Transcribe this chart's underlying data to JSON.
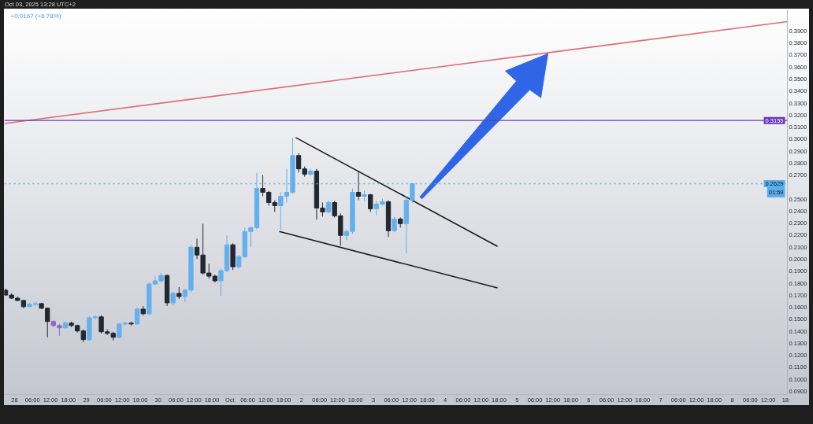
{
  "chart_data": {
    "type": "candlestick",
    "subtitle": "+0.0167 (+6.78%)",
    "annotations": [
      "Oct 03, 2025 13:28 UTC+2",
      "01:59"
    ],
    "x": [
      "2025-09-27T21:00",
      "2025-09-27T23:00",
      "2025-09-28T01:00",
      "2025-09-28T03:00",
      "2025-09-28T05:00",
      "2025-09-28T07:00",
      "2025-09-28T09:00",
      "2025-09-28T11:00",
      "2025-09-28T13:00",
      "2025-09-28T15:00",
      "2025-09-28T17:00",
      "2025-09-28T19:00",
      "2025-09-28T21:00",
      "2025-09-28T23:00",
      "2025-09-29T01:00",
      "2025-09-29T03:00",
      "2025-09-29T05:00",
      "2025-09-29T07:00",
      "2025-09-29T09:00",
      "2025-09-29T11:00",
      "2025-09-29T13:00",
      "2025-09-29T15:00",
      "2025-09-29T17:00",
      "2025-09-29T19:00",
      "2025-09-29T21:00",
      "2025-09-29T23:00",
      "2025-09-30T01:00",
      "2025-09-30T03:00",
      "2025-09-30T05:00",
      "2025-09-30T07:00",
      "2025-09-30T09:00",
      "2025-09-30T11:00",
      "2025-09-30T13:00",
      "2025-09-30T15:00",
      "2025-09-30T17:00",
      "2025-09-30T19:00",
      "2025-09-30T21:00",
      "2025-09-30T23:00",
      "2025-10-01T01:00",
      "2025-10-01T03:00",
      "2025-10-01T05:00",
      "2025-10-01T07:00",
      "2025-10-01T09:00",
      "2025-10-01T11:00",
      "2025-10-01T13:00",
      "2025-10-01T15:00",
      "2025-10-01T17:00",
      "2025-10-01T19:00",
      "2025-10-01T21:00",
      "2025-10-01T23:00",
      "2025-10-02T01:00",
      "2025-10-02T03:00",
      "2025-10-02T05:00",
      "2025-10-02T07:00",
      "2025-10-02T09:00",
      "2025-10-02T11:00",
      "2025-10-02T13:00",
      "2025-10-02T15:00",
      "2025-10-02T17:00",
      "2025-10-02T19:00",
      "2025-10-02T21:00",
      "2025-10-02T23:00",
      "2025-10-03T01:00",
      "2025-10-03T03:00",
      "2025-10-03T05:00",
      "2025-10-03T07:00",
      "2025-10-03T09:00",
      "2025-10-03T11:00",
      "2025-10-03T13:00"
    ],
    "ohlc": [
      [
        0.1742,
        0.1755,
        0.1696,
        0.1702
      ],
      [
        0.1702,
        0.1716,
        0.167,
        0.1676
      ],
      [
        0.1676,
        0.1689,
        0.165,
        0.1657
      ],
      [
        0.1657,
        0.1663,
        0.1592,
        0.1605
      ],
      [
        0.1605,
        0.1637,
        0.1598,
        0.1624
      ],
      [
        0.1624,
        0.1644,
        0.1611,
        0.1631
      ],
      [
        0.1631,
        0.1637,
        0.1585,
        0.1592
      ],
      [
        0.1592,
        0.1598,
        0.135,
        0.1481
      ],
      [
        0.1481,
        0.1494,
        0.1435,
        0.1448
      ],
      [
        0.1448,
        0.1461,
        0.1363,
        0.1429
      ],
      [
        0.1429,
        0.1481,
        0.1422,
        0.1468
      ],
      [
        0.1468,
        0.1481,
        0.1435,
        0.1448
      ],
      [
        0.1448,
        0.1455,
        0.139,
        0.1403
      ],
      [
        0.1403,
        0.1416,
        0.1311,
        0.1331
      ],
      [
        0.1331,
        0.1526,
        0.1318,
        0.1513
      ],
      [
        0.1513,
        0.1533,
        0.15,
        0.152
      ],
      [
        0.152,
        0.1533,
        0.1383,
        0.1396
      ],
      [
        0.1396,
        0.1416,
        0.137,
        0.1383
      ],
      [
        0.1383,
        0.1396,
        0.1324,
        0.135
      ],
      [
        0.135,
        0.1468,
        0.1344,
        0.1461
      ],
      [
        0.1461,
        0.1481,
        0.1448,
        0.1468
      ],
      [
        0.1468,
        0.1481,
        0.1448,
        0.1461
      ],
      [
        0.1461,
        0.1598,
        0.1455,
        0.1585
      ],
      [
        0.1585,
        0.1611,
        0.1533,
        0.1546
      ],
      [
        0.1546,
        0.1807,
        0.1533,
        0.1794
      ],
      [
        0.1794,
        0.1859,
        0.1781,
        0.182
      ],
      [
        0.182,
        0.1885,
        0.1807,
        0.1865
      ],
      [
        0.1865,
        0.1872,
        0.1611,
        0.1637
      ],
      [
        0.1637,
        0.1729,
        0.1618,
        0.1716
      ],
      [
        0.1716,
        0.1768,
        0.167,
        0.1689
      ],
      [
        0.1689,
        0.1755,
        0.1644,
        0.1742
      ],
      [
        0.1742,
        0.212,
        0.1729,
        0.21
      ],
      [
        0.21,
        0.2172,
        0.2002,
        0.2035
      ],
      [
        0.2035,
        0.2296,
        0.1872,
        0.1885
      ],
      [
        0.1885,
        0.1963,
        0.1839,
        0.1859
      ],
      [
        0.1859,
        0.1872,
        0.1807,
        0.182
      ],
      [
        0.182,
        0.1918,
        0.1696,
        0.1905
      ],
      [
        0.1905,
        0.2198,
        0.1892,
        0.212
      ],
      [
        0.212,
        0.2133,
        0.1911,
        0.1937
      ],
      [
        0.1937,
        0.2035,
        0.1924,
        0.2022
      ],
      [
        0.2022,
        0.2263,
        0.2009,
        0.2231
      ],
      [
        0.2231,
        0.2276,
        0.21,
        0.2263
      ],
      [
        0.2263,
        0.272,
        0.225,
        0.2589
      ],
      [
        0.2589,
        0.27,
        0.2524,
        0.2557
      ],
      [
        0.2557,
        0.257,
        0.2446,
        0.2472
      ],
      [
        0.2472,
        0.2491,
        0.2394,
        0.2446
      ],
      [
        0.2446,
        0.2557,
        0.2244,
        0.2524
      ],
      [
        0.2524,
        0.2752,
        0.2472,
        0.2557
      ],
      [
        0.2557,
        0.3013,
        0.2544,
        0.2863
      ],
      [
        0.2863,
        0.2883,
        0.272,
        0.2752
      ],
      [
        0.2752,
        0.2772,
        0.2687,
        0.2707
      ],
      [
        0.2707,
        0.2752,
        0.2694,
        0.2733
      ],
      [
        0.2733,
        0.2752,
        0.2329,
        0.2426
      ],
      [
        0.2426,
        0.2472,
        0.2355,
        0.2394
      ],
      [
        0.2394,
        0.2485,
        0.2381,
        0.2472
      ],
      [
        0.2472,
        0.2485,
        0.2348,
        0.2361
      ],
      [
        0.2361,
        0.2381,
        0.2113,
        0.2198
      ],
      [
        0.2198,
        0.225,
        0.2159,
        0.2231
      ],
      [
        0.2231,
        0.2589,
        0.2211,
        0.2557
      ],
      [
        0.2557,
        0.2733,
        0.2491,
        0.2524
      ],
      [
        0.2524,
        0.257,
        0.2485,
        0.2537
      ],
      [
        0.2537,
        0.2544,
        0.2394,
        0.242
      ],
      [
        0.242,
        0.2485,
        0.2368,
        0.2459
      ],
      [
        0.2459,
        0.2505,
        0.2446,
        0.2478
      ],
      [
        0.2478,
        0.2491,
        0.2185,
        0.2237
      ],
      [
        0.2237,
        0.2355,
        0.2224,
        0.2335
      ],
      [
        0.2335,
        0.2348,
        0.2263,
        0.2296
      ],
      [
        0.2296,
        0.2524,
        0.2048,
        0.2491
      ],
      [
        0.2491,
        0.2635,
        0.2472,
        0.2629
      ]
    ],
    "colors": [
      "#23272f",
      "#23272f",
      "#23272f",
      "#23272f",
      "#64b0ec",
      "#64b0ec",
      "#23272f",
      "#23272f",
      "#8a6cc8",
      "#8a6cc8",
      "#64b0ec",
      "#23272f",
      "#23272f",
      "#23272f",
      "#64b0ec",
      "#64b0ec",
      "#23272f",
      "#23272f",
      "#23272f",
      "#64b0ec",
      "#64b0ec",
      "#23272f",
      "#64b0ec",
      "#23272f",
      "#64b0ec",
      "#64b0ec",
      "#64b0ec",
      "#23272f",
      "#64b0ec",
      "#23272f",
      "#64b0ec",
      "#64b0ec",
      "#23272f",
      "#23272f",
      "#23272f",
      "#23272f",
      "#64b0ec",
      "#64b0ec",
      "#23272f",
      "#64b0ec",
      "#64b0ec",
      "#64b0ec",
      "#64b0ec",
      "#23272f",
      "#23272f",
      "#23272f",
      "#64b0ec",
      "#64b0ec",
      "#64b0ec",
      "#23272f",
      "#23272f",
      "#64b0ec",
      "#23272f",
      "#23272f",
      "#64b0ec",
      "#23272f",
      "#23272f",
      "#64b0ec",
      "#64b0ec",
      "#23272f",
      "#64b0ec",
      "#23272f",
      "#64b0ec",
      "#64b0ec",
      "#23272f",
      "#64b0ec",
      "#23272f",
      "#64b0ec",
      "#64b0ec"
    ],
    "series": [
      {
        "type": "line",
        "color": "#e06c75",
        "x": [
          "2025-09-27T20:35",
          "2025-10-08T18:25"
        ],
        "values": [
          0.313,
          0.3978
        ]
      },
      {
        "type": "line",
        "color": "#1c1c1c",
        "x": [
          "2025-10-01T22:00",
          "2025-10-04T17:30"
        ],
        "values": [
          0.3013,
          0.2107
        ]
      },
      {
        "type": "line",
        "color": "#1c1c1c",
        "x": [
          "2025-10-01T16:30",
          "2025-10-04T17:30"
        ],
        "values": [
          0.2231,
          0.1761
        ]
      }
    ],
    "ref_lines": [
      {
        "axis": "y",
        "value": 0.3155,
        "label": "0.3155",
        "color": "#673ab7"
      },
      {
        "axis": "y",
        "value": 0.2629,
        "label": "0.2629",
        "color": "#5aaeea",
        "line_style": "dotted"
      }
    ],
    "xlim": [
      "2025-09-27T20:35",
      "2025-10-08T18:25"
    ],
    "ylim": [
      0.0874,
      0.4076
    ],
    "xticks": [
      {
        "value": "2025-09-28T00:00",
        "label": "28"
      },
      {
        "value": "2025-09-28T06:00",
        "label": "06:00"
      },
      {
        "value": "2025-09-28T12:00",
        "label": "12:00"
      },
      {
        "value": "2025-09-28T18:00",
        "label": "18:00"
      },
      {
        "value": "2025-09-29T00:00",
        "label": "29"
      },
      {
        "value": "2025-09-29T06:00",
        "label": "06:00"
      },
      {
        "value": "2025-09-29T12:00",
        "label": "12:00"
      },
      {
        "value": "2025-09-29T18:00",
        "label": "18:00"
      },
      {
        "value": "2025-09-30T00:00",
        "label": "30"
      },
      {
        "value": "2025-09-30T06:00",
        "label": "06:00"
      },
      {
        "value": "2025-09-30T12:00",
        "label": "12:00"
      },
      {
        "value": "2025-09-30T18:00",
        "label": "18:00"
      },
      {
        "value": "2025-10-01T00:00",
        "label": "Oct"
      },
      {
        "value": "2025-10-01T06:00",
        "label": "06:00"
      },
      {
        "value": "2025-10-01T12:00",
        "label": "12:00"
      },
      {
        "value": "2025-10-01T18:00",
        "label": "18:00"
      },
      {
        "value": "2025-10-02T00:00",
        "label": "2"
      },
      {
        "value": "2025-10-02T06:00",
        "label": "06:00"
      },
      {
        "value": "2025-10-02T12:00",
        "label": "12:00"
      },
      {
        "value": "2025-10-02T18:00",
        "label": "18:00"
      },
      {
        "value": "2025-10-03T00:00",
        "label": "3"
      },
      {
        "value": "2025-10-03T06:00",
        "label": "06:00"
      },
      {
        "value": "2025-10-03T12:00",
        "label": "12:00"
      },
      {
        "value": "2025-10-03T18:00",
        "label": "18:00"
      },
      {
        "value": "2025-10-04T00:00",
        "label": "4"
      },
      {
        "value": "2025-10-04T06:00",
        "label": "06:00"
      },
      {
        "value": "2025-10-04T12:00",
        "label": "12:00"
      },
      {
        "value": "2025-10-04T18:00",
        "label": "18:00"
      },
      {
        "value": "2025-10-05T00:00",
        "label": "5"
      },
      {
        "value": "2025-10-05T06:00",
        "label": "06:00"
      },
      {
        "value": "2025-10-05T12:00",
        "label": "12:00"
      },
      {
        "value": "2025-10-05T18:00",
        "label": "18:00"
      },
      {
        "value": "2025-10-06T00:00",
        "label": "6"
      },
      {
        "value": "2025-10-06T06:00",
        "label": "06:00"
      },
      {
        "value": "2025-10-06T12:00",
        "label": "12:00"
      },
      {
        "value": "2025-10-06T18:00",
        "label": "18:00"
      },
      {
        "value": "2025-10-07T00:00",
        "label": "7"
      },
      {
        "value": "2025-10-07T06:00",
        "label": "06:00"
      },
      {
        "value": "2025-10-07T12:00",
        "label": "12:00"
      },
      {
        "value": "2025-10-07T18:00",
        "label": "18:00"
      },
      {
        "value": "2025-10-08T00:00",
        "label": "8"
      },
      {
        "value": "2025-10-08T06:00",
        "label": "06:00"
      },
      {
        "value": "2025-10-08T12:00",
        "label": "12:00"
      },
      {
        "value": "2025-10-08T18:00",
        "label": "18:"
      }
    ],
    "yticks": [
      {
        "value": 0.09,
        "label": "0.0900"
      },
      {
        "value": 0.1,
        "label": "0.1000"
      },
      {
        "value": 0.11,
        "label": "0.1100"
      },
      {
        "value": 0.12,
        "label": "0.1200"
      },
      {
        "value": 0.13,
        "label": "0.1300"
      },
      {
        "value": 0.14,
        "label": "0.1400"
      },
      {
        "value": 0.15,
        "label": "0.1500"
      },
      {
        "value": 0.16,
        "label": "0.1600"
      },
      {
        "value": 0.17,
        "label": "0.1700"
      },
      {
        "value": 0.18,
        "label": "0.1800"
      },
      {
        "value": 0.19,
        "label": "0.1900"
      },
      {
        "value": 0.2,
        "label": "0.2000"
      },
      {
        "value": 0.21,
        "label": "0.2100"
      },
      {
        "value": 0.22,
        "label": "0.2200"
      },
      {
        "value": 0.23,
        "label": "0.2300"
      },
      {
        "value": 0.24,
        "label": "0.2400"
      },
      {
        "value": 0.25,
        "label": "0.2500"
      },
      {
        "value": 0.27,
        "label": "0.2700"
      },
      {
        "value": 0.28,
        "label": "0.2800"
      },
      {
        "value": 0.29,
        "label": "0.2900"
      },
      {
        "value": 0.3,
        "label": "0.3000"
      },
      {
        "value": 0.31,
        "label": "0.3100"
      },
      {
        "value": 0.32,
        "label": "0.3200"
      },
      {
        "value": 0.33,
        "label": "0.3300"
      },
      {
        "value": 0.34,
        "label": "0.3400"
      },
      {
        "value": 0.35,
        "label": "0.3500"
      },
      {
        "value": 0.36,
        "label": "0.3600"
      },
      {
        "value": 0.37,
        "label": "0.3700"
      },
      {
        "value": 0.38,
        "label": "0.3800"
      },
      {
        "value": 0.39,
        "label": "0.3900"
      }
    ]
  }
}
